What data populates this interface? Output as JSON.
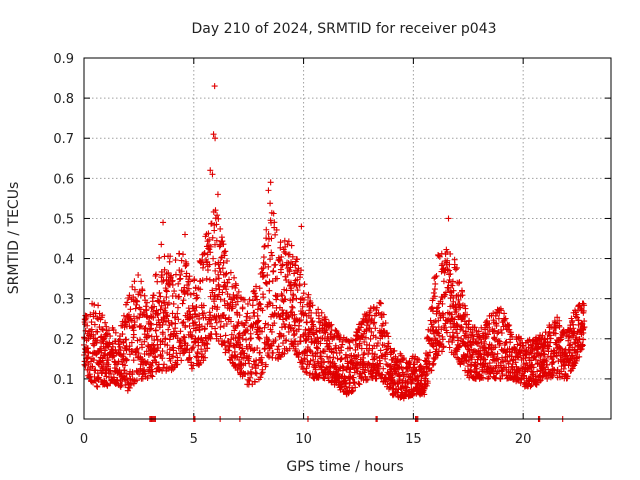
{
  "chart_data": {
    "type": "scatter",
    "title": "Day 210 of 2024, SRMTID for receiver p043",
    "xlabel": "GPS time / hours",
    "ylabel": "SRMTID / TECUs",
    "xlim": [
      0,
      24
    ],
    "ylim": [
      0,
      0.9
    ],
    "x_ticks": [
      "0",
      "5",
      "10",
      "15",
      "20"
    ],
    "y_ticks": [
      "0",
      "0.1",
      "0.2",
      "0.3",
      "0.4",
      "0.5",
      "0.6",
      "0.7",
      "0.8",
      "0.9"
    ],
    "grid": true,
    "marker": "+",
    "series_color": "#e00000",
    "trend": [
      {
        "x": 0.0,
        "lo": 0.12,
        "hi": 0.26
      },
      {
        "x": 0.5,
        "lo": 0.08,
        "hi": 0.3
      },
      {
        "x": 1.0,
        "lo": 0.08,
        "hi": 0.24
      },
      {
        "x": 1.5,
        "lo": 0.08,
        "hi": 0.22
      },
      {
        "x": 2.0,
        "lo": 0.07,
        "hi": 0.3
      },
      {
        "x": 2.5,
        "lo": 0.1,
        "hi": 0.38
      },
      {
        "x": 3.0,
        "lo": 0.1,
        "hi": 0.26
      },
      {
        "x": 3.5,
        "lo": 0.12,
        "hi": 0.45
      },
      {
        "x": 4.0,
        "lo": 0.12,
        "hi": 0.4
      },
      {
        "x": 4.5,
        "lo": 0.15,
        "hi": 0.42
      },
      {
        "x": 5.0,
        "lo": 0.12,
        "hi": 0.35
      },
      {
        "x": 5.5,
        "lo": 0.15,
        "hi": 0.45
      },
      {
        "x": 6.0,
        "lo": 0.2,
        "hi": 0.55
      },
      {
        "x": 6.5,
        "lo": 0.15,
        "hi": 0.4
      },
      {
        "x": 7.0,
        "lo": 0.12,
        "hi": 0.33
      },
      {
        "x": 7.5,
        "lo": 0.08,
        "hi": 0.3
      },
      {
        "x": 8.0,
        "lo": 0.1,
        "hi": 0.35
      },
      {
        "x": 8.5,
        "lo": 0.15,
        "hi": 0.55
      },
      {
        "x": 9.0,
        "lo": 0.15,
        "hi": 0.45
      },
      {
        "x": 9.5,
        "lo": 0.18,
        "hi": 0.45
      },
      {
        "x": 10.0,
        "lo": 0.12,
        "hi": 0.35
      },
      {
        "x": 10.5,
        "lo": 0.1,
        "hi": 0.28
      },
      {
        "x": 11.0,
        "lo": 0.1,
        "hi": 0.26
      },
      {
        "x": 11.5,
        "lo": 0.08,
        "hi": 0.22
      },
      {
        "x": 12.0,
        "lo": 0.06,
        "hi": 0.2
      },
      {
        "x": 12.5,
        "lo": 0.08,
        "hi": 0.24
      },
      {
        "x": 13.0,
        "lo": 0.1,
        "hi": 0.28
      },
      {
        "x": 13.5,
        "lo": 0.1,
        "hi": 0.3
      },
      {
        "x": 14.0,
        "lo": 0.06,
        "hi": 0.18
      },
      {
        "x": 14.5,
        "lo": 0.05,
        "hi": 0.16
      },
      {
        "x": 15.0,
        "lo": 0.06,
        "hi": 0.16
      },
      {
        "x": 15.5,
        "lo": 0.06,
        "hi": 0.14
      },
      {
        "x": 16.0,
        "lo": 0.15,
        "hi": 0.4
      },
      {
        "x": 16.5,
        "lo": 0.18,
        "hi": 0.45
      },
      {
        "x": 17.0,
        "lo": 0.15,
        "hi": 0.38
      },
      {
        "x": 17.5,
        "lo": 0.1,
        "hi": 0.25
      },
      {
        "x": 18.0,
        "lo": 0.1,
        "hi": 0.22
      },
      {
        "x": 18.5,
        "lo": 0.1,
        "hi": 0.26
      },
      {
        "x": 19.0,
        "lo": 0.1,
        "hi": 0.28
      },
      {
        "x": 19.5,
        "lo": 0.1,
        "hi": 0.22
      },
      {
        "x": 20.0,
        "lo": 0.08,
        "hi": 0.2
      },
      {
        "x": 20.5,
        "lo": 0.08,
        "hi": 0.2
      },
      {
        "x": 21.0,
        "lo": 0.1,
        "hi": 0.22
      },
      {
        "x": 21.5,
        "lo": 0.1,
        "hi": 0.26
      },
      {
        "x": 22.0,
        "lo": 0.1,
        "hi": 0.22
      },
      {
        "x": 22.5,
        "lo": 0.15,
        "hi": 0.33
      },
      {
        "x": 22.8,
        "lo": 0.18,
        "hi": 0.28
      }
    ],
    "outliers": [
      {
        "x": 5.95,
        "y": 0.83
      },
      {
        "x": 5.9,
        "y": 0.71
      },
      {
        "x": 5.97,
        "y": 0.7
      },
      {
        "x": 5.75,
        "y": 0.62
      },
      {
        "x": 5.85,
        "y": 0.61
      },
      {
        "x": 6.1,
        "y": 0.56
      },
      {
        "x": 8.5,
        "y": 0.59
      },
      {
        "x": 8.4,
        "y": 0.57
      },
      {
        "x": 3.6,
        "y": 0.49
      },
      {
        "x": 16.6,
        "y": 0.5
      },
      {
        "x": 9.9,
        "y": 0.48
      },
      {
        "x": 4.6,
        "y": 0.46
      }
    ],
    "zero_points_x": [
      3.0,
      3.05,
      3.1,
      3.15,
      3.2,
      3.25,
      5.0,
      5.05,
      6.2,
      7.1,
      10.2,
      13.3,
      13.35,
      15.1,
      15.15,
      15.2,
      20.7,
      20.75,
      21.8
    ]
  }
}
